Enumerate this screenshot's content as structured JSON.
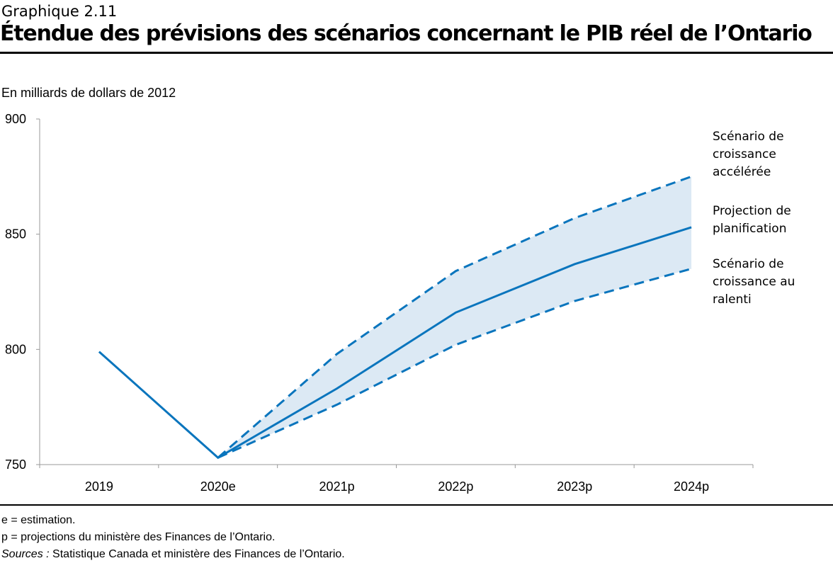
{
  "header": {
    "supertitle": "Graphique 2.11",
    "title": "Étendue des prévisions des scénarios concernant le PIB réel de l’Ontario"
  },
  "chart_data": {
    "type": "line",
    "title": "Étendue des prévisions des scénarios concernant le PIB réel de l’Ontario",
    "ylabel": "En milliards de dollars de 2012",
    "ylim": [
      750,
      900
    ],
    "yticks": [
      "750",
      "800",
      "850",
      "900"
    ],
    "categories": [
      "2019",
      "2020e",
      "2021p",
      "2022p",
      "2023p",
      "2024p"
    ],
    "series": [
      {
        "name": "Scénario de croissance accélérée",
        "style": "dashed",
        "values": [
          null,
          753,
          798,
          834,
          857,
          875
        ]
      },
      {
        "name": "Projection de planification",
        "style": "solid",
        "values": [
          799,
          753,
          783,
          816,
          837,
          853
        ]
      },
      {
        "name": "Scénario de croissance au ralenti",
        "style": "dashed",
        "values": [
          null,
          753,
          776,
          802,
          821,
          835
        ]
      }
    ],
    "series_labels": [
      [
        "Scénario de",
        "croissance",
        "accélérée"
      ],
      [
        "Projection de",
        "planification"
      ],
      [
        "Scénario de",
        "croissance au",
        "ralenti"
      ]
    ],
    "band_color": "#dce9f4",
    "line_color": "#0a75bd",
    "grid": false,
    "legend": "right-inline"
  },
  "notes": {
    "e": "e = estimation.",
    "p": "p = projections du ministère des Finances de l’Ontario.",
    "sources_label": "Sources :",
    "sources": "Statistique Canada et ministère des Finances de l’Ontario."
  }
}
